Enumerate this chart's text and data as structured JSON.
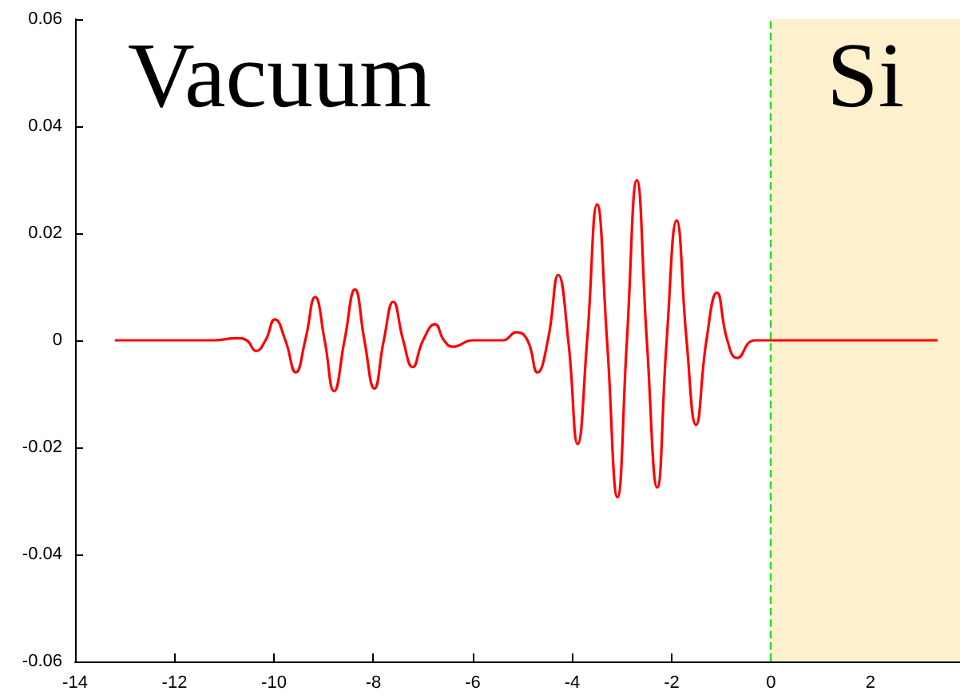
{
  "chart_data": {
    "type": "line",
    "x": [
      -13.2,
      -11.2,
      -10.75,
      -10.55,
      -10.36,
      -10.17,
      -9.98,
      -9.77,
      -9.56,
      -9.37,
      -9.17,
      -8.98,
      -8.79,
      -8.58,
      -8.37,
      -8.18,
      -7.98,
      -7.79,
      -7.6,
      -7.4,
      -7.21,
      -7.0,
      -6.76,
      -6.58,
      -6.4,
      -6.0,
      -5.4,
      -5.12,
      -4.9,
      -4.7,
      -4.49,
      -4.28,
      -4.08,
      -3.89,
      -3.7,
      -3.5,
      -3.3,
      -3.09,
      -2.9,
      -2.7,
      -2.5,
      -2.29,
      -2.1,
      -1.9,
      -1.7,
      -1.51,
      -1.3,
      -1.09,
      -0.88,
      -0.68,
      -0.32,
      3.35
    ],
    "series": [
      {
        "color": "#ff0000",
        "values": [
          0,
          0,
          0.0004,
          0,
          -0.002,
          0,
          0.0039,
          0,
          -0.006,
          0,
          0.0081,
          0,
          -0.0095,
          0,
          0.0095,
          0,
          -0.009,
          0,
          0.0072,
          0,
          -0.005,
          0,
          0.003,
          0,
          -0.0012,
          0,
          0,
          0.0015,
          0,
          -0.006,
          0,
          0.0122,
          0,
          -0.0194,
          0,
          0.0254,
          0,
          -0.0293,
          0,
          0.0299,
          0,
          -0.0275,
          0,
          0.0224,
          0,
          -0.0158,
          0,
          0.0089,
          0,
          -0.0033,
          0,
          0
        ]
      }
    ],
    "xlim": [
      -14,
      3.8
    ],
    "xticks": [
      -14,
      -12,
      -10,
      -8,
      -6,
      -4,
      -2,
      0,
      2
    ],
    "ylim": [
      -0.06,
      0.06
    ],
    "yticks": [
      -0.06,
      -0.04,
      -0.02,
      0,
      0.02,
      0.04,
      0.06
    ],
    "ref_lines": [
      {
        "axis": "x",
        "value": 0,
        "color": "#22dd22",
        "line_style": "dashed"
      }
    ],
    "bands": [
      {
        "axis": "x",
        "from": 0,
        "to": 3.8,
        "label": "Si",
        "color": "#fdf0cc"
      }
    ],
    "annotations": [
      "Vacuum"
    ],
    "grid": false,
    "marker": "none",
    "line_style": "solid"
  }
}
